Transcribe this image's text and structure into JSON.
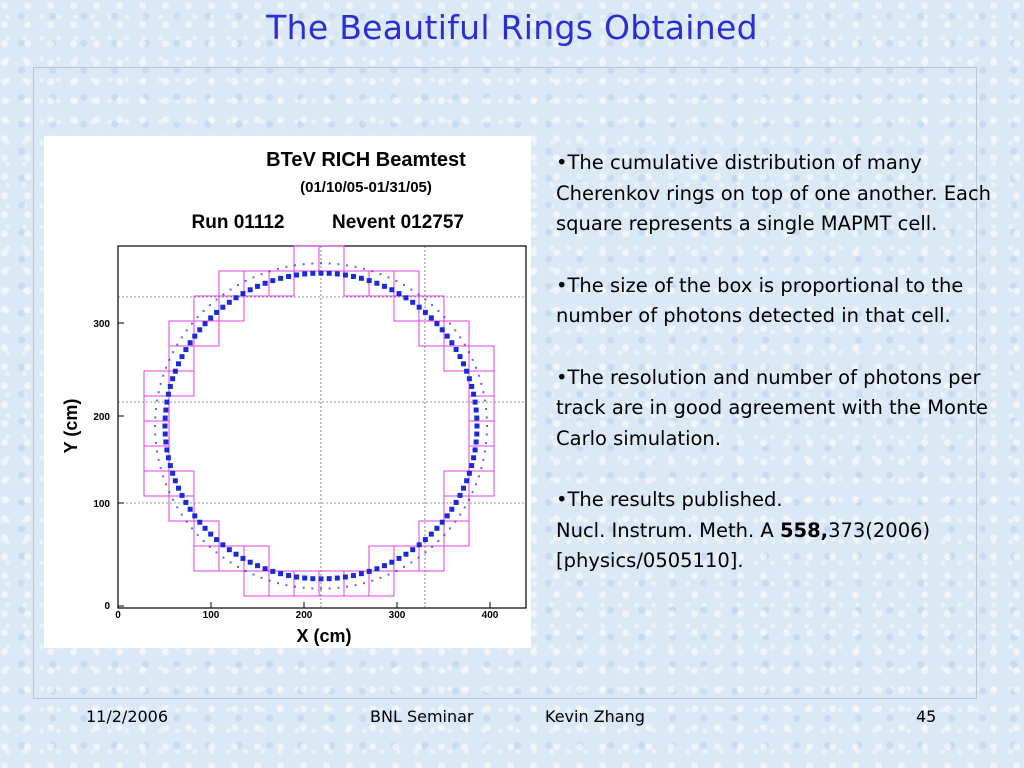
{
  "slide": {
    "title": "The Beautiful Rings Obtained",
    "figure": {
      "heading": "BTeV RICH Beamtest",
      "dates": "(01/10/05-01/31/05)",
      "run": "Run 01112",
      "nevent": "Nevent 012757",
      "ylabel": "Y (cm)",
      "xlabel": "X (cm)",
      "x_ticks": [
        "0",
        "100",
        "200",
        "300",
        "400"
      ],
      "y_ticks": [
        "0",
        "100",
        "200",
        "300"
      ],
      "colors": {
        "box": "#e040e0",
        "photon": "#1a2ad8",
        "grid": "#333333"
      }
    },
    "bullets": [
      {
        "text": "•The cumulative distribution of many Cherenkov rings on top of one another. Each square represents a single MAPMT cell."
      },
      {
        "text": "•The  size of the box is proportional to the number of photons detected in that cell."
      },
      {
        "text": "•The resolution and number of photons per track are in good agreement with the Monte Carlo simulation."
      },
      {
        "line1": "•The results published.",
        "pre": "Nucl. Instrum. Meth. A ",
        "bold": "558,",
        "post": "373(2006)",
        "line3": "[physics/0505110]."
      }
    ],
    "footer": {
      "date": "11/2/2006",
      "event": "BNL Seminar",
      "author": "Kevin Zhang",
      "page": "45"
    }
  }
}
